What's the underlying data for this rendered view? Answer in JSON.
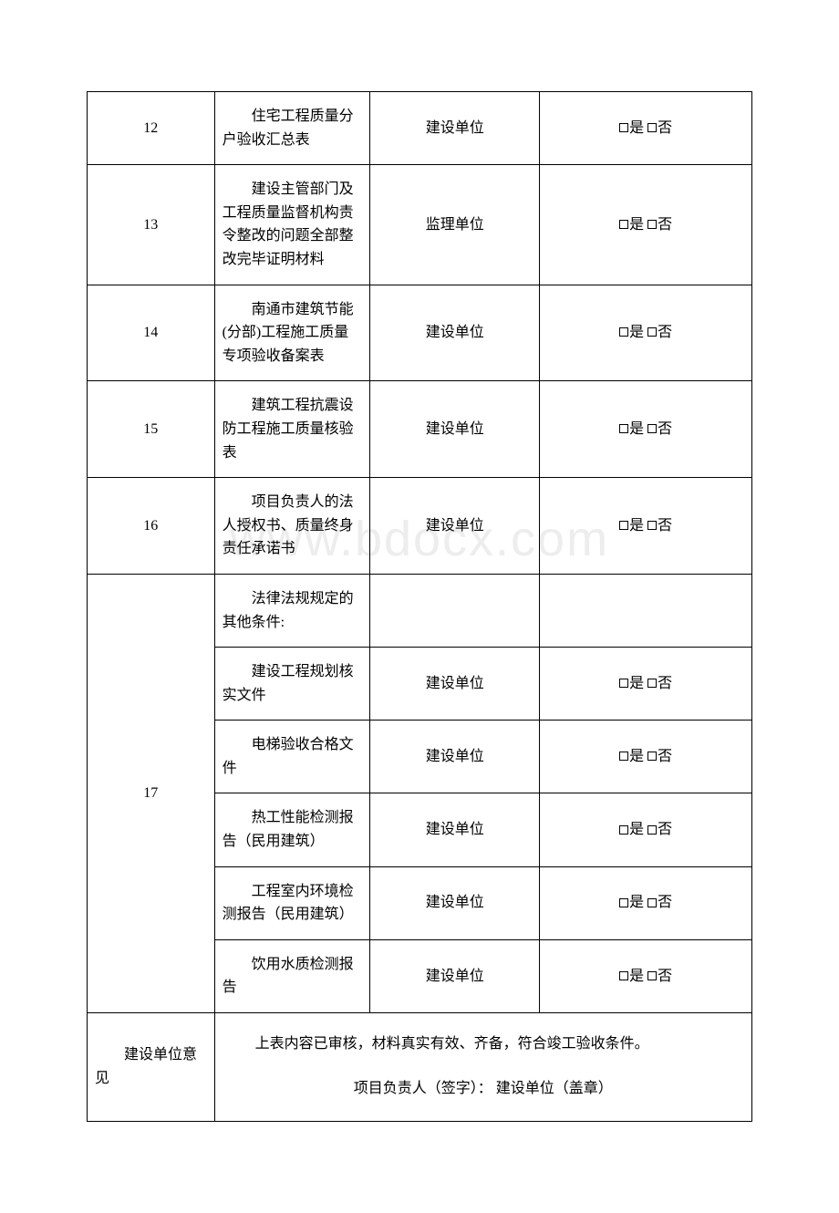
{
  "watermark": "www.bdocx.com",
  "rows": [
    {
      "num": "12",
      "desc": "住宅工程质量分户验收汇总表",
      "unit": "建设单位",
      "yes": "是",
      "no": "否"
    },
    {
      "num": "13",
      "desc": "建设主管部门及工程质量监督机构责令整改的问题全部整改完毕证明材料",
      "unit": "监理单位",
      "yes": "是",
      "no": "否"
    },
    {
      "num": "14",
      "desc": "南通市建筑节能(分部)工程施工质量专项验收备案表",
      "unit": "建设单位",
      "yes": "是",
      "no": "否"
    },
    {
      "num": "15",
      "desc": "建筑工程抗震设防工程施工质量核验表",
      "unit": "建设单位",
      "yes": "是",
      "no": "否"
    },
    {
      "num": "16",
      "desc": "项目负责人的法人授权书、质量终身责任承诺书",
      "unit": "建设单位",
      "yes": "是",
      "no": "否"
    }
  ],
  "row17": {
    "num": "17",
    "sub": [
      {
        "desc": "法律法规规定的其他条件:",
        "unit": "",
        "yes": "",
        "no": ""
      },
      {
        "desc": "建设工程规划核实文件",
        "unit": "建设单位",
        "yes": "是",
        "no": "否"
      },
      {
        "desc": "电梯验收合格文件",
        "unit": "建设单位",
        "yes": "是",
        "no": "否"
      },
      {
        "desc": "热工性能检测报告（民用建筑）",
        "unit": "建设单位",
        "yes": "是",
        "no": "否"
      },
      {
        "desc": "工程室内环境检测报告（民用建筑）",
        "unit": "建设单位",
        "yes": "是",
        "no": "否"
      },
      {
        "desc": "饮用水质检测报告",
        "unit": "建设单位",
        "yes": "是",
        "no": "否"
      }
    ]
  },
  "opinion": {
    "label": "建设单位意见",
    "line1": "上表内容已审核，材料真实有效、齐备，符合竣工验收条件。",
    "line2": "项目负责人（签字）：  建设单位（盖章）"
  }
}
